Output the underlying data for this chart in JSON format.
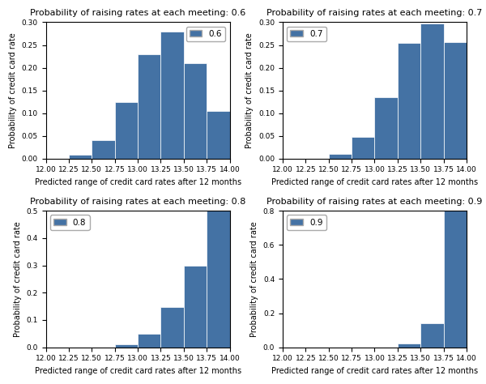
{
  "subplots": [
    {
      "prob": 0.6,
      "title": "Probability of raising rates at each meeting: 0.6",
      "legend_label": "0.6",
      "legend_loc": "upper right",
      "bins": [
        12.0,
        12.25,
        12.5,
        12.75,
        13.0,
        13.25,
        13.5,
        13.75,
        14.0
      ],
      "heights": [
        0.0,
        0.008,
        0.04,
        0.125,
        0.23,
        0.28,
        0.21,
        0.105
      ],
      "ylim": [
        0,
        0.3
      ],
      "yticks": [
        0.0,
        0.05,
        0.1,
        0.15,
        0.2,
        0.25,
        0.3
      ]
    },
    {
      "prob": 0.7,
      "title": "Probability of raising rates at each meeting: 0.7",
      "legend_label": "0.7",
      "legend_loc": "upper left",
      "bins": [
        12.0,
        12.25,
        12.5,
        12.75,
        13.0,
        13.25,
        13.5,
        13.75,
        14.0
      ],
      "heights": [
        0.0,
        0.0,
        0.01,
        0.048,
        0.135,
        0.255,
        0.298,
        0.256
      ],
      "ylim": [
        0,
        0.3
      ],
      "yticks": [
        0.0,
        0.05,
        0.1,
        0.15,
        0.2,
        0.25,
        0.3
      ]
    },
    {
      "prob": 0.8,
      "title": "Probability of raising rates at each meeting: 0.8",
      "legend_label": "0.8",
      "legend_loc": "upper left",
      "bins": [
        12.0,
        12.25,
        12.5,
        12.75,
        13.0,
        13.25,
        13.5,
        13.75,
        14.0
      ],
      "heights": [
        0.0,
        0.0,
        0.0,
        0.01,
        0.048,
        0.148,
        0.298,
        0.503
      ],
      "ylim": [
        0,
        0.5
      ],
      "yticks": [
        0.0,
        0.1,
        0.2,
        0.3,
        0.4,
        0.5
      ]
    },
    {
      "prob": 0.9,
      "title": "Probability of raising rates at each meeting: 0.9",
      "legend_label": "0.9",
      "legend_loc": "upper left",
      "bins": [
        12.0,
        12.25,
        12.5,
        12.75,
        13.0,
        13.25,
        13.5,
        13.75,
        14.0
      ],
      "heights": [
        0.0,
        0.0,
        0.0,
        0.0,
        0.0,
        0.02,
        0.14,
        0.8
      ],
      "ylim": [
        0,
        0.8
      ],
      "yticks": [
        0.0,
        0.2,
        0.4,
        0.6,
        0.8
      ]
    }
  ],
  "bar_color": "#4472a4",
  "bar_edgecolor": "#4472a4",
  "xlabel": "Predicted range of credit card rates after 12 months",
  "ylabel": "Probability of credit card rate",
  "xticks": [
    12.0,
    12.25,
    12.5,
    12.75,
    13.0,
    13.25,
    13.5,
    13.75,
    14.0
  ],
  "xtick_labels": [
    "12.00",
    "12.25",
    "12.50",
    "12.75",
    "13.00",
    "13.25",
    "13.50",
    "13.75",
    "14.00"
  ],
  "fig_width": 6.0,
  "fig_height": 4.74,
  "dpi": 100
}
